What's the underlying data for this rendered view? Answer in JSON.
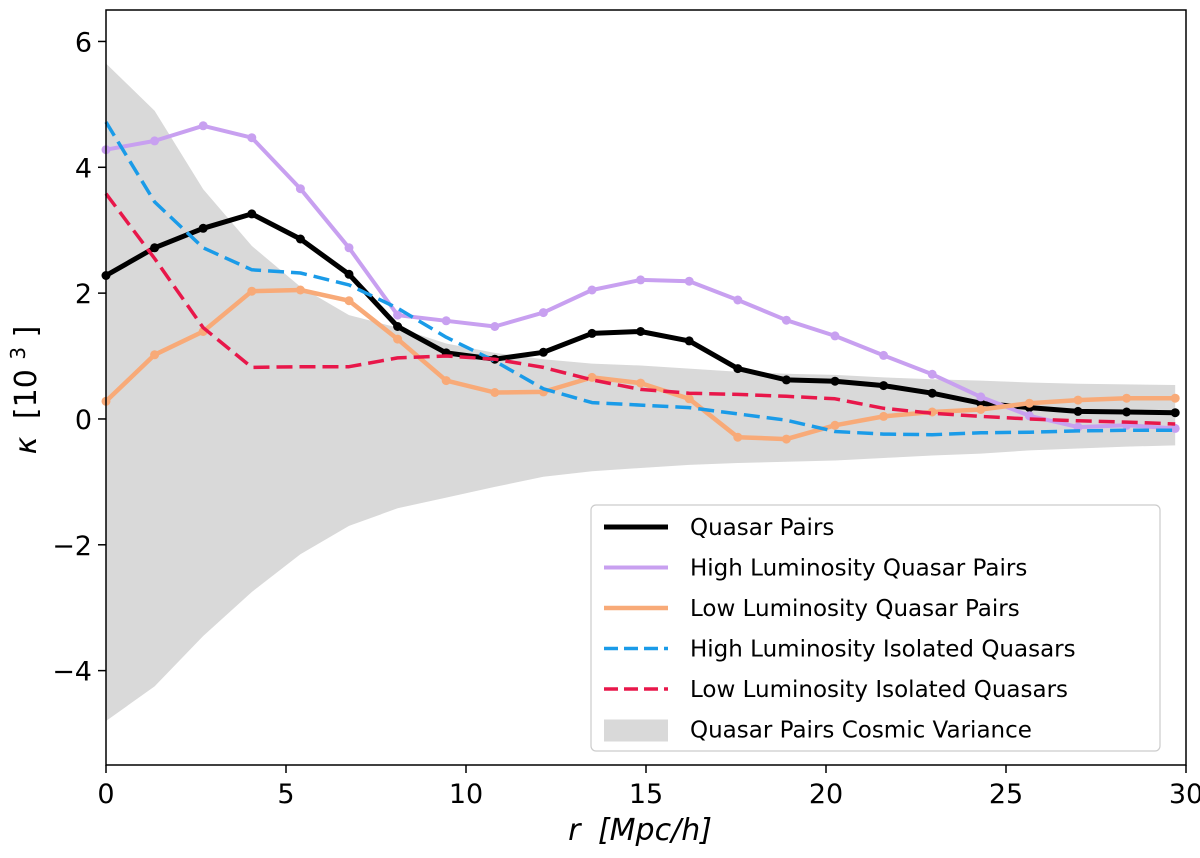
{
  "chart_data": {
    "type": "line",
    "xlabel_var": "r",
    "xlabel_unit": "[Mpc/h]",
    "ylabel_var": "κ",
    "ylabel_unit": "[10",
    "ylabel_exp": "3",
    "ylabel_close": "]",
    "xlim": [
      0,
      30
    ],
    "ylim": [
      -5.5,
      6.5
    ],
    "xticks": [
      0,
      5,
      10,
      15,
      20,
      25,
      30
    ],
    "xtick_labels": [
      "0",
      "5",
      "10",
      "15",
      "20",
      "25",
      "30"
    ],
    "yticks": [
      -4,
      -2,
      0,
      2,
      4,
      6
    ],
    "ytick_labels": [
      "−4",
      "−2",
      "0",
      "2",
      "4",
      "6"
    ],
    "legend_position": "lower-right",
    "band": {
      "name": "Quasar Pairs Cosmic Variance",
      "color": "#d9d9d9",
      "x": [
        0,
        1.35,
        2.7,
        4.05,
        5.4,
        6.75,
        8.1,
        9.45,
        10.8,
        12.15,
        13.5,
        14.85,
        16.2,
        17.55,
        18.9,
        20.25,
        21.6,
        22.95,
        24.3,
        25.65,
        27.0,
        28.35,
        29.7
      ],
      "upper": [
        5.65,
        4.9,
        3.65,
        2.75,
        2.1,
        1.65,
        1.45,
        1.2,
        1.05,
        0.95,
        0.88,
        0.85,
        0.8,
        0.75,
        0.72,
        0.7,
        0.66,
        0.63,
        0.61,
        0.58,
        0.56,
        0.55,
        0.54
      ],
      "lower": [
        -4.8,
        -4.25,
        -3.45,
        -2.75,
        -2.15,
        -1.7,
        -1.42,
        -1.25,
        -1.08,
        -0.92,
        -0.83,
        -0.78,
        -0.73,
        -0.7,
        -0.68,
        -0.66,
        -0.62,
        -0.58,
        -0.55,
        -0.5,
        -0.47,
        -0.44,
        -0.42
      ]
    },
    "x": [
      0,
      1.35,
      2.7,
      4.05,
      5.4,
      6.75,
      8.1,
      9.45,
      10.8,
      12.15,
      13.5,
      14.85,
      16.2,
      17.55,
      18.9,
      20.25,
      21.6,
      22.95,
      24.3,
      25.65,
      27.0,
      28.35,
      29.7
    ],
    "series": [
      {
        "name": "Quasar Pairs",
        "color": "#000000",
        "style": "solid",
        "markers": true,
        "width": 5,
        "values": [
          2.28,
          2.72,
          3.03,
          3.26,
          2.86,
          2.3,
          1.47,
          1.05,
          0.95,
          1.06,
          1.36,
          1.39,
          1.24,
          0.8,
          0.62,
          0.6,
          0.53,
          0.41,
          0.25,
          0.18,
          0.12,
          0.11,
          0.1
        ]
      },
      {
        "name": "High Luminosity Quasar Pairs",
        "color": "#c8a0f0",
        "style": "solid",
        "markers": true,
        "width": 4,
        "values": [
          4.28,
          4.42,
          4.66,
          4.47,
          3.66,
          2.72,
          1.65,
          1.56,
          1.47,
          1.69,
          2.05,
          2.21,
          2.19,
          1.89,
          1.57,
          1.32,
          1.01,
          0.71,
          0.35,
          0.05,
          -0.13,
          -0.1,
          -0.15
        ]
      },
      {
        "name": "Low Luminosity Quasar Pairs",
        "color": "#f8aa78",
        "style": "solid",
        "markers": true,
        "width": 4.5,
        "values": [
          0.28,
          1.02,
          1.39,
          2.03,
          2.05,
          1.88,
          1.27,
          0.61,
          0.42,
          0.43,
          0.66,
          0.57,
          0.32,
          -0.29,
          -0.32,
          -0.1,
          0.04,
          0.11,
          0.15,
          0.25,
          0.3,
          0.33,
          0.33
        ]
      },
      {
        "name": "High Luminosity Isolated Quasars",
        "color": "#1a9be8",
        "style": "dashed",
        "markers": false,
        "width": 3.5,
        "values": [
          4.72,
          3.45,
          2.72,
          2.37,
          2.32,
          2.13,
          1.76,
          1.3,
          0.92,
          0.48,
          0.26,
          0.22,
          0.18,
          0.08,
          -0.02,
          -0.2,
          -0.24,
          -0.25,
          -0.22,
          -0.21,
          -0.19,
          -0.18,
          -0.18
        ]
      },
      {
        "name": "Low Luminosity Isolated Quasars",
        "color": "#e8174a",
        "style": "dashed",
        "markers": false,
        "width": 3.5,
        "values": [
          3.58,
          2.55,
          1.45,
          0.82,
          0.83,
          0.83,
          0.97,
          1.0,
          0.95,
          0.82,
          0.62,
          0.47,
          0.41,
          0.39,
          0.36,
          0.32,
          0.17,
          0.09,
          0.04,
          0.0,
          -0.03,
          -0.05,
          -0.08
        ]
      }
    ]
  }
}
